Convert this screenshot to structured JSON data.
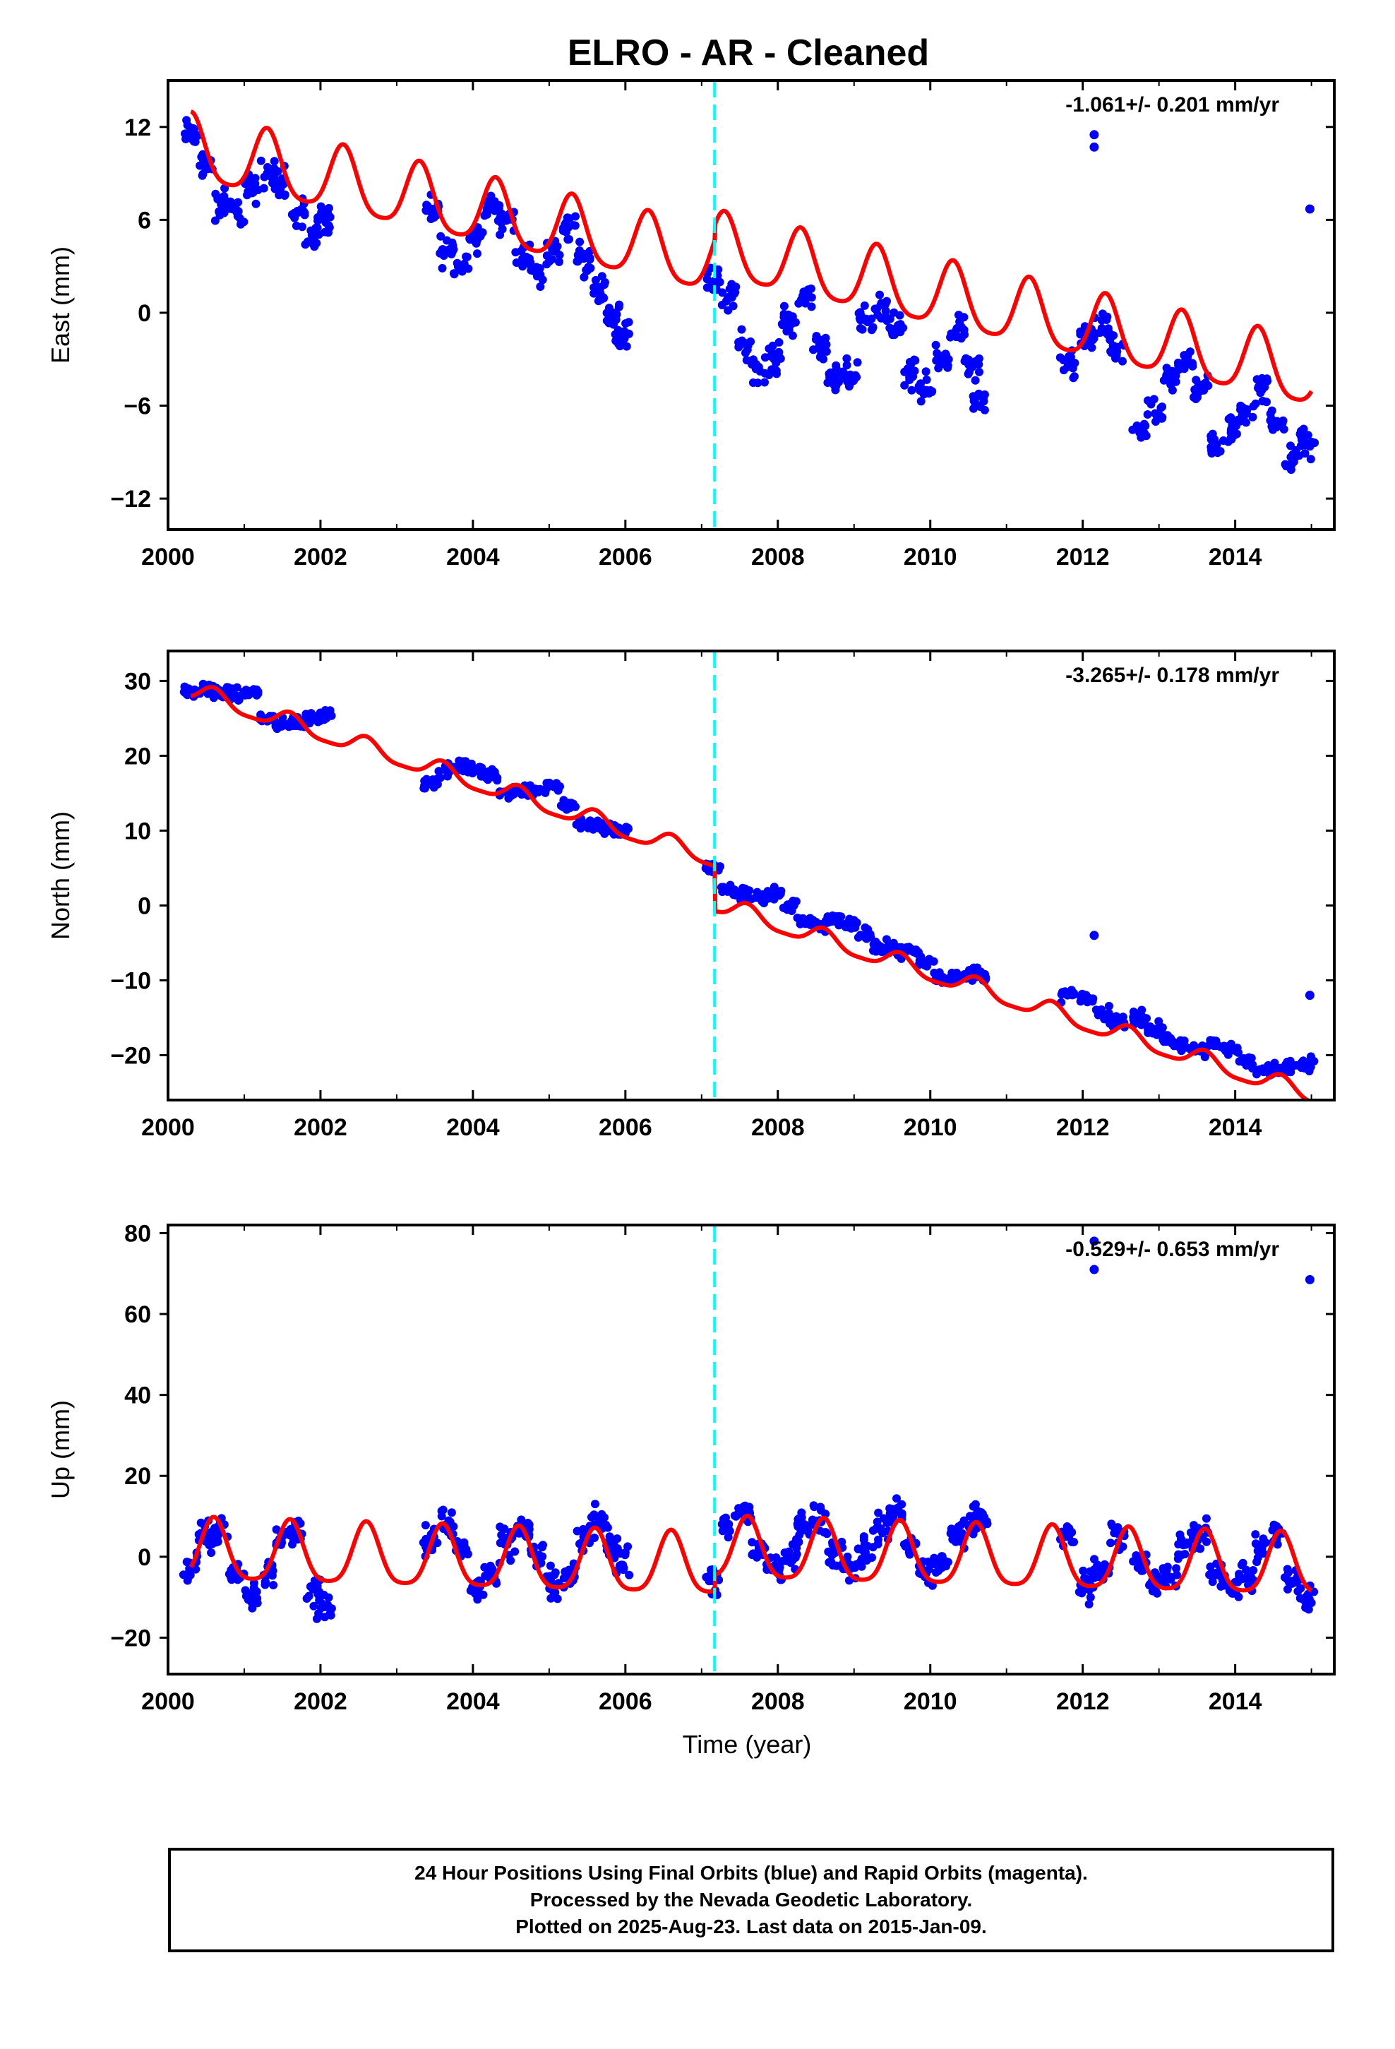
{
  "chart_data": [
    {
      "type": "scatter",
      "panel": "east",
      "title": "ELRO  - AR - Cleaned",
      "xlabel": "",
      "ylabel": "East (mm)",
      "xlim": [
        2000,
        2015.3
      ],
      "ylim": [
        -14,
        15
      ],
      "xticks": [
        2000,
        2002,
        2004,
        2006,
        2008,
        2010,
        2012,
        2014
      ],
      "yticks": [
        12,
        6,
        0,
        -6,
        -12
      ],
      "annotation": "-1.061+/- 0.201 mm/yr",
      "grid": false,
      "series": [
        {
          "kind": "points",
          "color": "#0000ff",
          "x": [
            2000.3,
            2000.5,
            2000.7,
            2000.9,
            2001.1,
            2001.3,
            2001.5,
            2001.7,
            2001.9,
            2002.05,
            2003.45,
            2003.65,
            2003.85,
            2004.05,
            2004.25,
            2004.45,
            2004.65,
            2004.85,
            2005.05,
            2005.25,
            2005.45,
            2005.65,
            2005.85,
            2005.95,
            2007.15,
            2007.35,
            2007.55,
            2007.75,
            2007.95,
            2008.15,
            2008.35,
            2008.55,
            2008.75,
            2008.95,
            2009.15,
            2009.35,
            2009.55,
            2009.75,
            2009.95,
            2010.15,
            2010.35,
            2010.55,
            2010.65,
            2011.8,
            2012.05,
            2012.25,
            2012.45,
            2012.75,
            2012.95,
            2013.15,
            2013.35,
            2013.55,
            2013.75,
            2013.95,
            2014.15,
            2014.35,
            2014.55,
            2014.75,
            2014.95
          ],
          "y": [
            11.5,
            9.5,
            7.0,
            6.5,
            8.0,
            9.0,
            8.5,
            6.5,
            5.0,
            6.0,
            6.5,
            4.0,
            3.0,
            5.0,
            7.0,
            6.0,
            3.5,
            2.5,
            4.0,
            5.5,
            3.5,
            1.5,
            0.0,
            -1.5,
            2.0,
            1.0,
            -2.0,
            -3.5,
            -3.0,
            -0.5,
            1.0,
            -2.0,
            -4.5,
            -4.0,
            -0.5,
            0.5,
            -1.0,
            -4.0,
            -5.0,
            -3.0,
            -1.0,
            -3.5,
            -6.0,
            -3.5,
            -1.5,
            -1.0,
            -2.5,
            -7.5,
            -6.5,
            -4.5,
            -3.0,
            -5.0,
            -8.5,
            -7.5,
            -6.5,
            -5.0,
            -7.0,
            -9.5,
            -8.5
          ]
        },
        {
          "kind": "outliers",
          "color": "#0000ff",
          "x": [
            2012.15,
            2012.15,
            2014.98
          ],
          "y": [
            11.5,
            10.7,
            6.7
          ]
        },
        {
          "kind": "model",
          "color": "#ff0000",
          "params": {
            "offset": 10.5,
            "t0": 2000.3,
            "rate": -1.061,
            "annual_amp": 2.1,
            "annual_peak": 0.3,
            "semi_amp": 0.4,
            "steps": [
              {
                "t": 2007.17,
                "dy": 1.0
              }
            ]
          }
        },
        {
          "kind": "vline",
          "color": "#00ffff",
          "x": 2007.17
        }
      ]
    },
    {
      "type": "scatter",
      "panel": "north",
      "title": "",
      "xlabel": "",
      "ylabel": "North (mm)",
      "xlim": [
        2000,
        2015.3
      ],
      "ylim": [
        -26,
        34
      ],
      "xticks": [
        2000,
        2002,
        2004,
        2006,
        2008,
        2010,
        2012,
        2014
      ],
      "yticks": [
        30,
        20,
        10,
        0,
        -10,
        -20
      ],
      "annotation": "-3.265+/- 0.178 mm/yr",
      "grid": false,
      "series": [
        {
          "kind": "points",
          "color": "#0000ff",
          "x": [
            2000.3,
            2000.5,
            2000.7,
            2000.9,
            2001.1,
            2001.3,
            2001.5,
            2001.7,
            2001.9,
            2002.05,
            2003.45,
            2003.65,
            2003.85,
            2004.05,
            2004.25,
            2004.45,
            2004.65,
            2004.85,
            2005.05,
            2005.25,
            2005.45,
            2005.65,
            2005.85,
            2005.95,
            2007.15,
            2007.35,
            2007.55,
            2007.75,
            2007.95,
            2008.15,
            2008.35,
            2008.55,
            2008.75,
            2008.95,
            2009.15,
            2009.35,
            2009.55,
            2009.75,
            2009.95,
            2010.15,
            2010.35,
            2010.55,
            2010.65,
            2011.8,
            2012.05,
            2012.25,
            2012.45,
            2012.75,
            2012.95,
            2013.15,
            2013.35,
            2013.55,
            2013.75,
            2013.95,
            2014.15,
            2014.35,
            2014.55,
            2014.75,
            2014.95
          ],
          "y": [
            28.5,
            29.0,
            28.5,
            28.0,
            28.5,
            25.0,
            24.0,
            24.5,
            25.0,
            25.5,
            16.5,
            18.0,
            18.5,
            18.0,
            17.5,
            15.0,
            15.5,
            15.5,
            16.0,
            13.5,
            11.0,
            10.5,
            10.0,
            10.0,
            5.0,
            2.0,
            1.5,
            1.0,
            1.5,
            0.0,
            -2.0,
            -2.5,
            -2.0,
            -2.5,
            -4.0,
            -5.5,
            -6.0,
            -6.0,
            -7.5,
            -9.5,
            -9.5,
            -9.0,
            -9.5,
            -12.0,
            -12.5,
            -14.5,
            -15.5,
            -15.0,
            -16.5,
            -18.0,
            -19.0,
            -19.5,
            -18.5,
            -19.0,
            -21.0,
            -22.0,
            -22.0,
            -21.5,
            -21.0
          ]
        },
        {
          "kind": "outliers",
          "color": "#0000ff",
          "x": [
            2012.15,
            2014.98
          ],
          "y": [
            -4.0,
            -12.0
          ]
        },
        {
          "kind": "model",
          "color": "#ff0000",
          "params": {
            "offset": 28.6,
            "t0": 2000.3,
            "rate": -3.265,
            "annual_amp": 1.2,
            "annual_peak": 0.6,
            "semi_amp": 0.3,
            "steps": [
              {
                "t": 2007.17,
                "dy": -6.0
              }
            ]
          }
        },
        {
          "kind": "vline",
          "color": "#00ffff",
          "x": 2007.17
        }
      ]
    },
    {
      "type": "scatter",
      "panel": "up",
      "title": "",
      "xlabel": "Time (year)",
      "ylabel": "Up (mm)",
      "xlim": [
        2000,
        2015.3
      ],
      "ylim": [
        -29,
        82
      ],
      "xticks": [
        2000,
        2002,
        2004,
        2006,
        2008,
        2010,
        2012,
        2014
      ],
      "yticks": [
        80,
        60,
        40,
        20,
        0,
        -20
      ],
      "annotation": "-0.529+/- 0.653 mm/yr",
      "grid": false,
      "series": [
        {
          "kind": "points",
          "color": "#0000ff",
          "x": [
            2000.3,
            2000.5,
            2000.7,
            2000.9,
            2001.1,
            2001.3,
            2001.5,
            2001.7,
            2001.9,
            2002.05,
            2003.45,
            2003.65,
            2003.85,
            2004.05,
            2004.25,
            2004.45,
            2004.65,
            2004.85,
            2005.05,
            2005.25,
            2005.45,
            2005.65,
            2005.85,
            2005.95,
            2007.15,
            2007.35,
            2007.55,
            2007.75,
            2007.95,
            2008.15,
            2008.35,
            2008.55,
            2008.75,
            2008.95,
            2009.15,
            2009.35,
            2009.55,
            2009.75,
            2009.95,
            2010.15,
            2010.35,
            2010.55,
            2010.65,
            2011.8,
            2012.05,
            2012.25,
            2012.45,
            2012.75,
            2012.95,
            2013.15,
            2013.35,
            2013.55,
            2013.75,
            2013.95,
            2014.15,
            2014.35,
            2014.55,
            2014.75,
            2014.95
          ],
          "y": [
            -2.0,
            5.0,
            6.0,
            -3.0,
            -9.0,
            -4.0,
            5.0,
            6.0,
            -8.0,
            -12.0,
            4.0,
            8.0,
            2.0,
            -8.0,
            -5.0,
            3.0,
            7.0,
            0.0,
            -7.0,
            -5.0,
            5.0,
            9.0,
            3.0,
            -2.0,
            -6.0,
            7.0,
            11.0,
            2.0,
            -3.0,
            0.0,
            8.0,
            9.0,
            1.0,
            -2.0,
            1.0,
            7.0,
            11.0,
            3.0,
            -4.0,
            -2.0,
            6.0,
            8.0,
            10.0,
            5.0,
            -7.0,
            -3.0,
            6.0,
            -2.0,
            -7.0,
            -5.0,
            3.0,
            5.0,
            -4.0,
            -7.0,
            -5.0,
            2.0,
            5.0,
            -6.0,
            -10.0
          ]
        },
        {
          "kind": "outliers",
          "color": "#0000ff",
          "x": [
            2012.15,
            2012.15,
            2014.98
          ],
          "y": [
            78.0,
            71.0,
            68.5
          ]
        },
        {
          "kind": "model",
          "color": "#ff0000",
          "params": {
            "offset": 1.0,
            "t0": 2000.3,
            "rate": -0.529,
            "annual_amp": 7.5,
            "annual_peak": 0.6,
            "semi_amp": 1.5,
            "steps": [
              {
                "t": 2007.17,
                "dy": 4.0
              }
            ]
          }
        },
        {
          "kind": "vline",
          "color": "#00ffff",
          "x": 2007.17
        }
      ]
    }
  ],
  "footer": {
    "line1": "24 Hour Positions Using Final Orbits (blue) and Rapid Orbits (magenta).",
    "line2": "Processed by the Nevada Geodetic Laboratory.",
    "line3": "Plotted on 2025-Aug-23. Last data on 2015-Jan-09."
  },
  "data_gaps": [
    [
      2002.1,
      2003.4
    ],
    [
      2006.0,
      2007.1
    ],
    [
      2010.7,
      2011.75
    ]
  ]
}
